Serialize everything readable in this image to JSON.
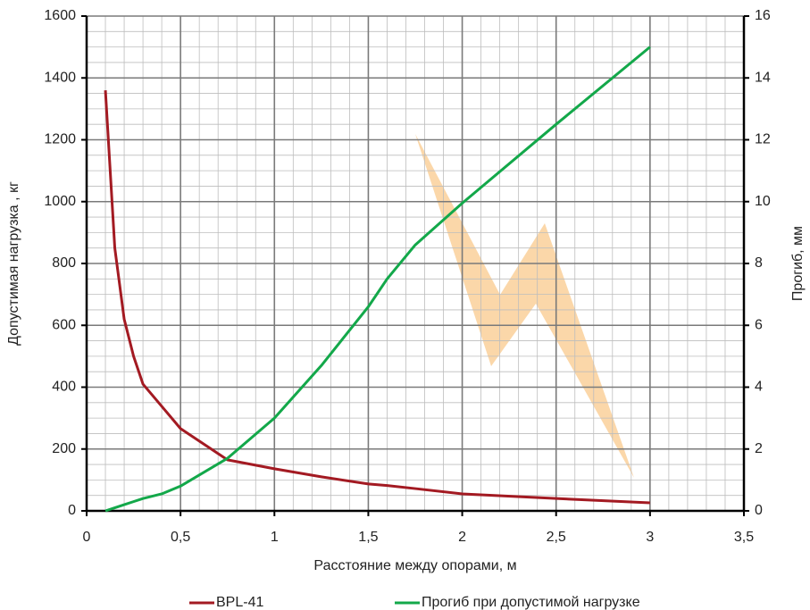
{
  "chart_data": {
    "type": "line",
    "xlabel": "Расстояние между опорами, м",
    "ylabel": "Допустимая нагрузка , кг",
    "y2label": "Прогиб, мм",
    "x": [
      0.1,
      0.15,
      0.2,
      0.25,
      0.3,
      0.4,
      0.5,
      0.75,
      1,
      1.25,
      1.5,
      1.6,
      1.75,
      2,
      2.5,
      3
    ],
    "series": [
      {
        "name": "BPL-41",
        "color": "#a31a22",
        "values": [
          1360,
          850,
          620,
          500,
          410,
          338,
          266,
          165,
          136,
          110,
          87,
          82,
          72,
          55,
          40,
          26
        ]
      },
      {
        "name": "Прогиб при допустимой нагрузке",
        "color": "#13a84a",
        "axis": "y2",
        "values": [
          0,
          0.1,
          0.2,
          0.3,
          0.4,
          0.55,
          0.8,
          1.7,
          3.0,
          4.7,
          6.6,
          7.5,
          8.6,
          9.95,
          12.5,
          15
        ]
      }
    ],
    "xlim": [
      0,
      3.5
    ],
    "xticks": [
      0,
      {
        "value": 0.5,
        "label": "0,5"
      },
      1,
      {
        "value": 1.5,
        "label": "1,5"
      },
      2,
      {
        "value": 2.5,
        "label": "2,5"
      },
      3,
      {
        "value": 3.5,
        "label": "3,5"
      }
    ],
    "ylim": [
      0,
      1600
    ],
    "yticks": [
      0,
      200,
      400,
      600,
      800,
      1000,
      1200,
      1400,
      1600
    ],
    "y2lim": [
      0,
      16
    ],
    "y2ticks": [
      0,
      2,
      4,
      6,
      8,
      10,
      12,
      14,
      16
    ],
    "grid": true
  }
}
